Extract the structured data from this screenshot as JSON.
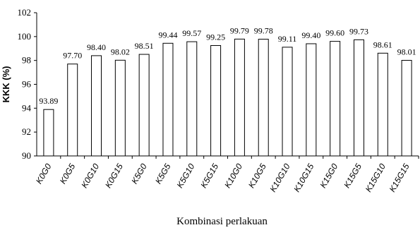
{
  "chart_data": {
    "type": "bar",
    "categories": [
      "K0G0",
      "K0G5",
      "K0G10",
      "K0G15",
      "K5G0",
      "K5G5",
      "K5G10",
      "K5G15",
      "K10G0",
      "K10G5",
      "K10G10",
      "K10G15",
      "K15G0",
      "K15G5",
      "K15G10",
      "K15G15"
    ],
    "values": [
      93.89,
      97.7,
      98.4,
      98.02,
      98.51,
      99.44,
      99.57,
      99.25,
      99.79,
      99.78,
      99.11,
      99.4,
      99.6,
      99.73,
      98.61,
      98.01
    ],
    "value_labels": [
      "93.89",
      "97.70",
      "98.40",
      "98.02",
      "98.51",
      "99.44",
      "99.57",
      "99.25",
      "99.79",
      "99.78",
      "99.11",
      "99.40",
      "99.60",
      "99.73",
      "98.61",
      "98.01"
    ],
    "xlabel": "Kombinasi perlakuan",
    "ylabel": "KKK (%)",
    "ylim": [
      90,
      102
    ],
    "yticks": [
      90,
      92,
      94,
      96,
      98,
      100,
      102
    ],
    "ytick_labels": [
      "90",
      "92",
      "94",
      "96",
      "98",
      "100",
      "102"
    ],
    "grid": false,
    "bar_fill": "#ffffff",
    "bar_stroke": "#000000"
  }
}
